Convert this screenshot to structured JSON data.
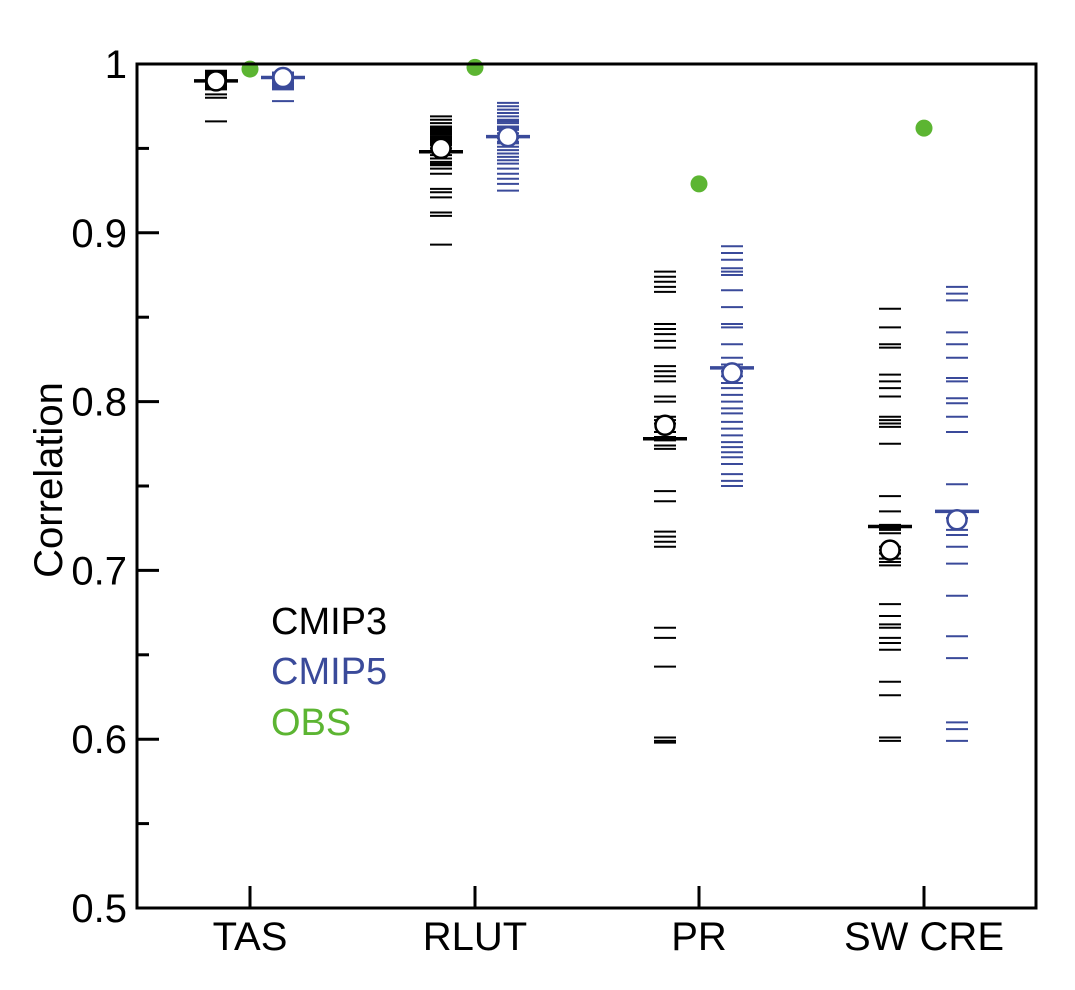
{
  "chart_data": {
    "type": "scatter",
    "title": "",
    "xlabel": "",
    "ylabel": "Correlation",
    "ylim": [
      0.5,
      1.0
    ],
    "yticks": [
      "0.5",
      "0.6",
      "0.7",
      "0.8",
      "0.9",
      "1"
    ],
    "grid": false,
    "legend_placement": "lower-left",
    "categories": [
      "TAS",
      "RLUT",
      "PR",
      "SW CRE"
    ],
    "colors": {
      "CMIP3": "#000000",
      "CMIP5": "#3a4a9a",
      "OBS": "#5cb532"
    },
    "series": [
      {
        "name": "CMIP3",
        "color": "#000000",
        "models": [
          [
            0.996,
            0.995,
            0.994,
            0.993,
            0.992,
            0.992,
            0.991,
            0.99,
            0.989,
            0.988,
            0.987,
            0.986,
            0.985,
            0.982,
            0.98,
            0.966
          ],
          [
            0.969,
            0.967,
            0.965,
            0.963,
            0.962,
            0.961,
            0.96,
            0.959,
            0.958,
            0.957,
            0.956,
            0.955,
            0.954,
            0.953,
            0.952,
            0.95,
            0.948,
            0.946,
            0.944,
            0.942,
            0.941,
            0.94,
            0.938,
            0.935,
            0.926,
            0.924,
            0.921,
            0.912,
            0.91,
            0.893
          ],
          [
            0.877,
            0.874,
            0.871,
            0.868,
            0.865,
            0.846,
            0.843,
            0.84,
            0.836,
            0.832,
            0.821,
            0.818,
            0.815,
            0.812,
            0.803,
            0.8,
            0.791,
            0.789,
            0.787,
            0.782,
            0.779,
            0.777,
            0.774,
            0.772,
            0.747,
            0.741,
            0.723,
            0.72,
            0.717,
            0.714,
            0.666,
            0.66,
            0.643,
            0.601,
            0.599,
            0.598
          ],
          [
            0.855,
            0.844,
            0.834,
            0.832,
            0.816,
            0.812,
            0.808,
            0.803,
            0.791,
            0.789,
            0.787,
            0.785,
            0.775,
            0.744,
            0.735,
            0.727,
            0.726,
            0.725,
            0.724,
            0.722,
            0.714,
            0.712,
            0.71,
            0.707,
            0.705,
            0.703,
            0.68,
            0.673,
            0.668,
            0.666,
            0.66,
            0.657,
            0.653,
            0.634,
            0.626,
            0.601,
            0.599
          ]
        ],
        "mean": [
          0.99,
          0.948,
          0.778,
          0.726
        ],
        "multi_model_mean_corr": [
          0.99,
          0.95,
          0.786,
          0.712
        ]
      },
      {
        "name": "CMIP5",
        "color": "#3a4a9a",
        "models": [
          [
            0.995,
            0.994,
            0.993,
            0.992,
            0.991,
            0.99,
            0.989,
            0.988,
            0.987,
            0.986,
            0.985,
            0.978
          ],
          [
            0.977,
            0.975,
            0.973,
            0.971,
            0.969,
            0.967,
            0.966,
            0.965,
            0.963,
            0.962,
            0.961,
            0.959,
            0.957,
            0.956,
            0.954,
            0.953,
            0.951,
            0.949,
            0.947,
            0.945,
            0.943,
            0.941,
            0.938,
            0.935,
            0.932,
            0.929,
            0.925
          ],
          [
            0.892,
            0.888,
            0.884,
            0.879,
            0.877,
            0.875,
            0.866,
            0.856,
            0.846,
            0.844,
            0.834,
            0.826,
            0.822,
            0.818,
            0.815,
            0.811,
            0.808,
            0.804,
            0.8,
            0.796,
            0.793,
            0.788,
            0.784,
            0.78,
            0.776,
            0.773,
            0.77,
            0.767,
            0.763,
            0.757,
            0.753,
            0.75
          ],
          [
            0.868,
            0.864,
            0.86,
            0.841,
            0.834,
            0.826,
            0.814,
            0.812,
            0.802,
            0.799,
            0.791,
            0.782,
            0.751,
            0.731,
            0.724,
            0.721,
            0.714,
            0.704,
            0.685,
            0.661,
            0.648,
            0.61,
            0.606,
            0.599
          ]
        ],
        "mean": [
          0.992,
          0.957,
          0.82,
          0.735
        ],
        "multi_model_mean_corr": [
          0.992,
          0.957,
          0.817,
          0.73
        ]
      },
      {
        "name": "OBS",
        "color": "#5cb532",
        "values": [
          0.997,
          0.998,
          0.929,
          0.962
        ]
      }
    ]
  },
  "legend": {
    "items": [
      "CMIP3",
      "CMIP5",
      "OBS"
    ]
  }
}
